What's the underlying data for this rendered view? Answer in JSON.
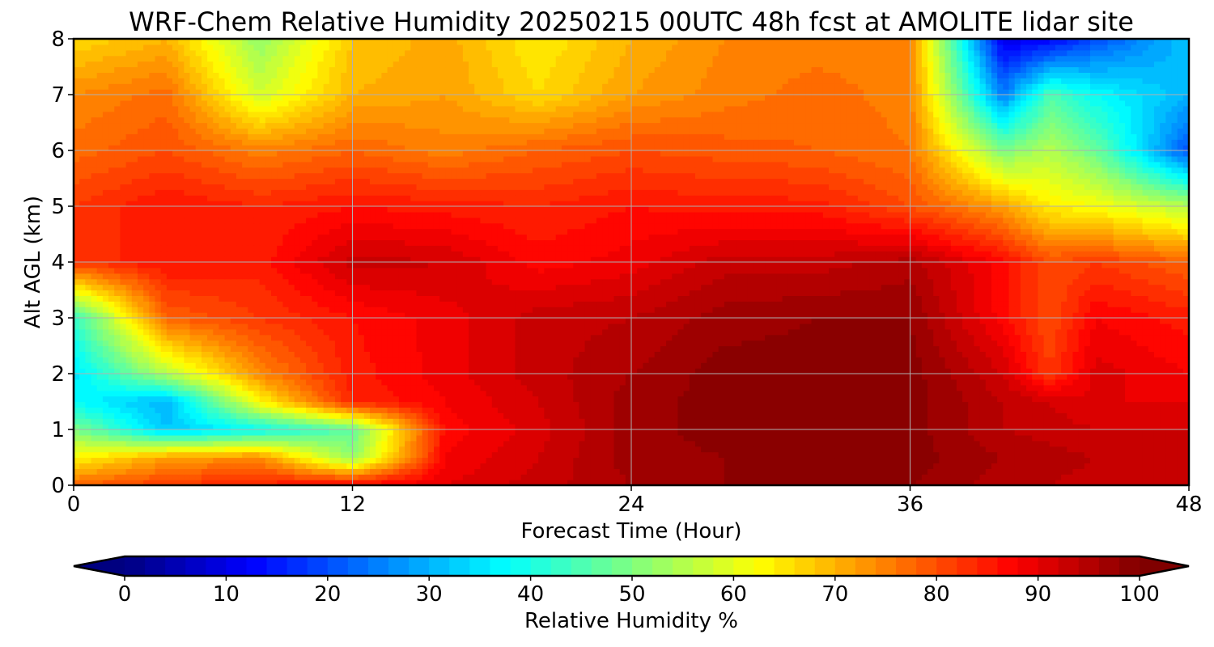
{
  "chart_data": {
    "type": "heatmap",
    "title": "WRF-Chem Relative Humidity 20250215 00UTC 48h fcst at AMOLITE lidar site",
    "xlabel": "Forecast Time (Hour)",
    "ylabel": "Alt AGL (km)",
    "xlim": [
      0,
      48
    ],
    "ylim": [
      0,
      8
    ],
    "x_ticks": [
      "0",
      "12",
      "24",
      "36",
      "48"
    ],
    "y_ticks": [
      "0",
      "1",
      "2",
      "3",
      "4",
      "5",
      "6",
      "7",
      "8"
    ],
    "grid": true,
    "colorbar": {
      "label": "Relative Humidity %",
      "colormap": "jet",
      "range": [
        0,
        100
      ],
      "extend": "both",
      "ticks": [
        "0",
        "10",
        "20",
        "30",
        "40",
        "50",
        "60",
        "70",
        "80",
        "90",
        "100"
      ]
    },
    "x": [
      0,
      4,
      8,
      12,
      16,
      20,
      24,
      28,
      32,
      36,
      40,
      42,
      44,
      48
    ],
    "y": [
      0,
      0.5,
      1,
      1.5,
      2,
      3,
      4,
      5,
      6,
      7,
      8
    ],
    "z": [
      [
        78,
        82,
        85,
        88,
        90,
        93,
        96,
        98,
        98,
        98,
        95,
        94,
        93,
        92
      ],
      [
        63,
        72,
        74,
        52,
        88,
        92,
        97,
        98,
        99,
        99,
        96,
        95,
        94,
        93
      ],
      [
        50,
        32,
        38,
        47,
        87,
        91,
        97,
        99,
        99,
        99,
        94,
        93,
        92,
        92
      ],
      [
        38,
        30,
        63,
        84,
        88,
        92,
        97,
        99,
        99,
        99,
        94,
        92,
        90,
        90
      ],
      [
        35,
        55,
        74,
        85,
        89,
        93,
        96,
        99,
        99,
        99,
        92,
        82,
        91,
        88
      ],
      [
        42,
        78,
        82,
        86,
        89,
        93,
        94,
        97,
        98,
        98,
        87,
        80,
        88,
        85
      ],
      [
        82,
        86,
        85,
        93,
        92,
        87,
        89,
        93,
        93,
        95,
        87,
        80,
        82,
        78
      ],
      [
        82,
        86,
        84,
        86,
        85,
        84,
        86,
        85,
        85,
        80,
        72,
        64,
        62,
        55
      ],
      [
        77,
        80,
        75,
        78,
        75,
        78,
        80,
        79,
        78,
        76,
        50,
        55,
        48,
        20
      ],
      [
        74,
        77,
        58,
        70,
        72,
        66,
        72,
        75,
        77,
        75,
        25,
        45,
        38,
        30
      ],
      [
        66,
        70,
        52,
        68,
        71,
        64,
        70,
        74,
        75,
        75,
        10,
        12,
        20,
        32
      ]
    ]
  }
}
